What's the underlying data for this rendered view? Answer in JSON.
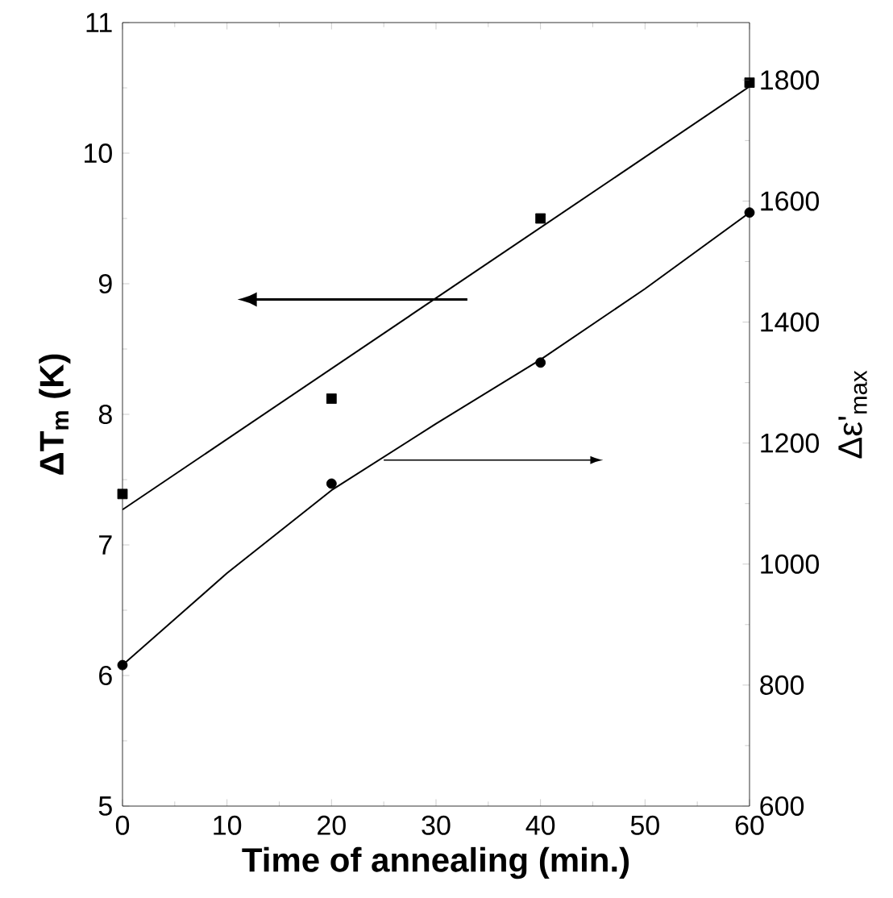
{
  "chart_data": {
    "type": "scatter",
    "xlabel": "Time of annealing (min.)",
    "ylabel": "ΔT$_{m}$ (K)",
    "y2label": "Δε'$_{max}$",
    "xlim": [
      0,
      60
    ],
    "xticks": [
      0,
      10,
      20,
      30,
      40,
      50,
      60
    ],
    "ylim": [
      5,
      11
    ],
    "yticks": [
      5,
      6,
      7,
      8,
      9,
      10,
      11
    ],
    "y2lim": [
      600,
      1895
    ],
    "y2ticks": [
      600,
      800,
      1000,
      1200,
      1400,
      1600,
      1800
    ],
    "series": [
      {
        "marker": "square",
        "color": "#000000",
        "x": [
          0,
          20,
          40,
          60
        ],
        "values": [
          7.39,
          8.12,
          9.5,
          10.54
        ]
      },
      {
        "type": "line",
        "color": "#000000",
        "x": [
          0,
          60
        ],
        "values": [
          7.27,
          10.51
        ]
      },
      {
        "marker": "circle",
        "axis": "y2",
        "color": "#000000",
        "x": [
          0,
          20,
          40,
          60
        ],
        "values": [
          833,
          1133,
          1333,
          1581
        ]
      },
      {
        "type": "line",
        "axis": "y2",
        "color": "#000000",
        "x": [
          0,
          10,
          20,
          30,
          40,
          50,
          60
        ],
        "values": [
          833,
          985,
          1122,
          1232,
          1338,
          1455,
          1581
        ]
      }
    ]
  }
}
